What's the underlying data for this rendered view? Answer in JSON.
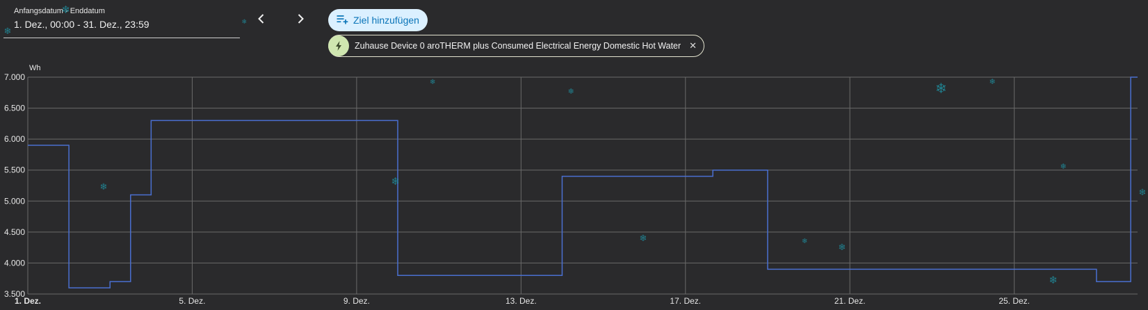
{
  "date_range": {
    "label": "Anfangsdatum - Enddatum",
    "value": "1. Dez., 00:00 - 31. Dez., 23:59"
  },
  "nav": {
    "prev_icon": "chevron-left-icon",
    "next_icon": "chevron-right-icon"
  },
  "add_target": {
    "label": "Ziel hinzufügen",
    "icon": "playlist-plus-icon",
    "color": "#0a74b8",
    "background": "#dbf0ff"
  },
  "entity_chip": {
    "label": "Zuhause Device 0 aroTHERM plus Consumed Electrical Energy Domestic Hot Water",
    "icon": "lightning-bolt-icon",
    "close_icon": "close-icon",
    "close_glyph": "✕"
  },
  "decorations": {
    "icon": "snowflake-icon",
    "glyph": "❄",
    "color": "#1f8fa0"
  },
  "chart_data": {
    "type": "line",
    "step": true,
    "ylabel": "Wh",
    "ylim": [
      3500,
      7000
    ],
    "yticks": [
      3500,
      4000,
      4500,
      5000,
      5500,
      6000,
      6500,
      7000
    ],
    "ytick_labels": [
      "3.500",
      "4.000",
      "4.500",
      "5.000",
      "5.500",
      "6.000",
      "6.500",
      "7.000"
    ],
    "xlim": [
      "2024-12-01",
      "2024-12-28"
    ],
    "xticks": [
      "2024-12-01",
      "2024-12-05",
      "2024-12-09",
      "2024-12-13",
      "2024-12-17",
      "2024-12-21",
      "2024-12-25"
    ],
    "xtick_labels": [
      "1. Dez.",
      "5. Dez.",
      "9. Dez.",
      "13. Dez.",
      "17. Dez.",
      "21. Dez.",
      "25. Dez."
    ],
    "grid": true,
    "series": [
      {
        "color": "#4a6fd0",
        "x": [
          "2024-12-01",
          "2024-12-02",
          "2024-12-03",
          "2024-12-03 12:00",
          "2024-12-04",
          "2024-12-10",
          "2024-12-14",
          "2024-12-17 16:00",
          "2024-12-19",
          "2024-12-27",
          "2024-12-27 20:00"
        ],
        "y": [
          5900,
          3600,
          3700,
          5100,
          6300,
          3800,
          5400,
          5500,
          3900,
          3700,
          7000
        ]
      }
    ]
  }
}
